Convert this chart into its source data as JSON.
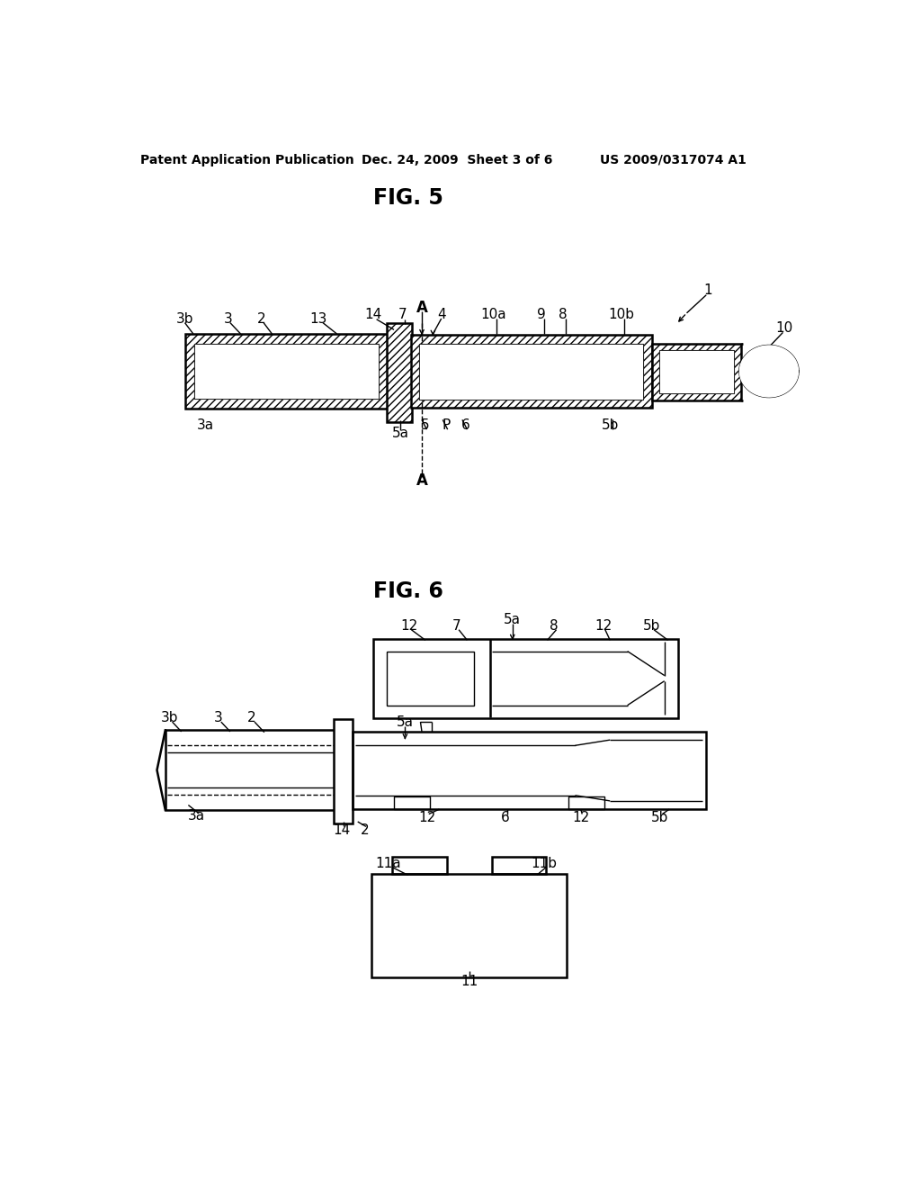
{
  "background_color": "#ffffff",
  "header_left": "Patent Application Publication",
  "header_mid": "Dec. 24, 2009  Sheet 3 of 6",
  "header_right": "US 2009/0317074 A1",
  "fig5_title": "FIG. 5",
  "fig6_title": "FIG. 6",
  "lw": 1.8,
  "thin_lw": 1.0
}
